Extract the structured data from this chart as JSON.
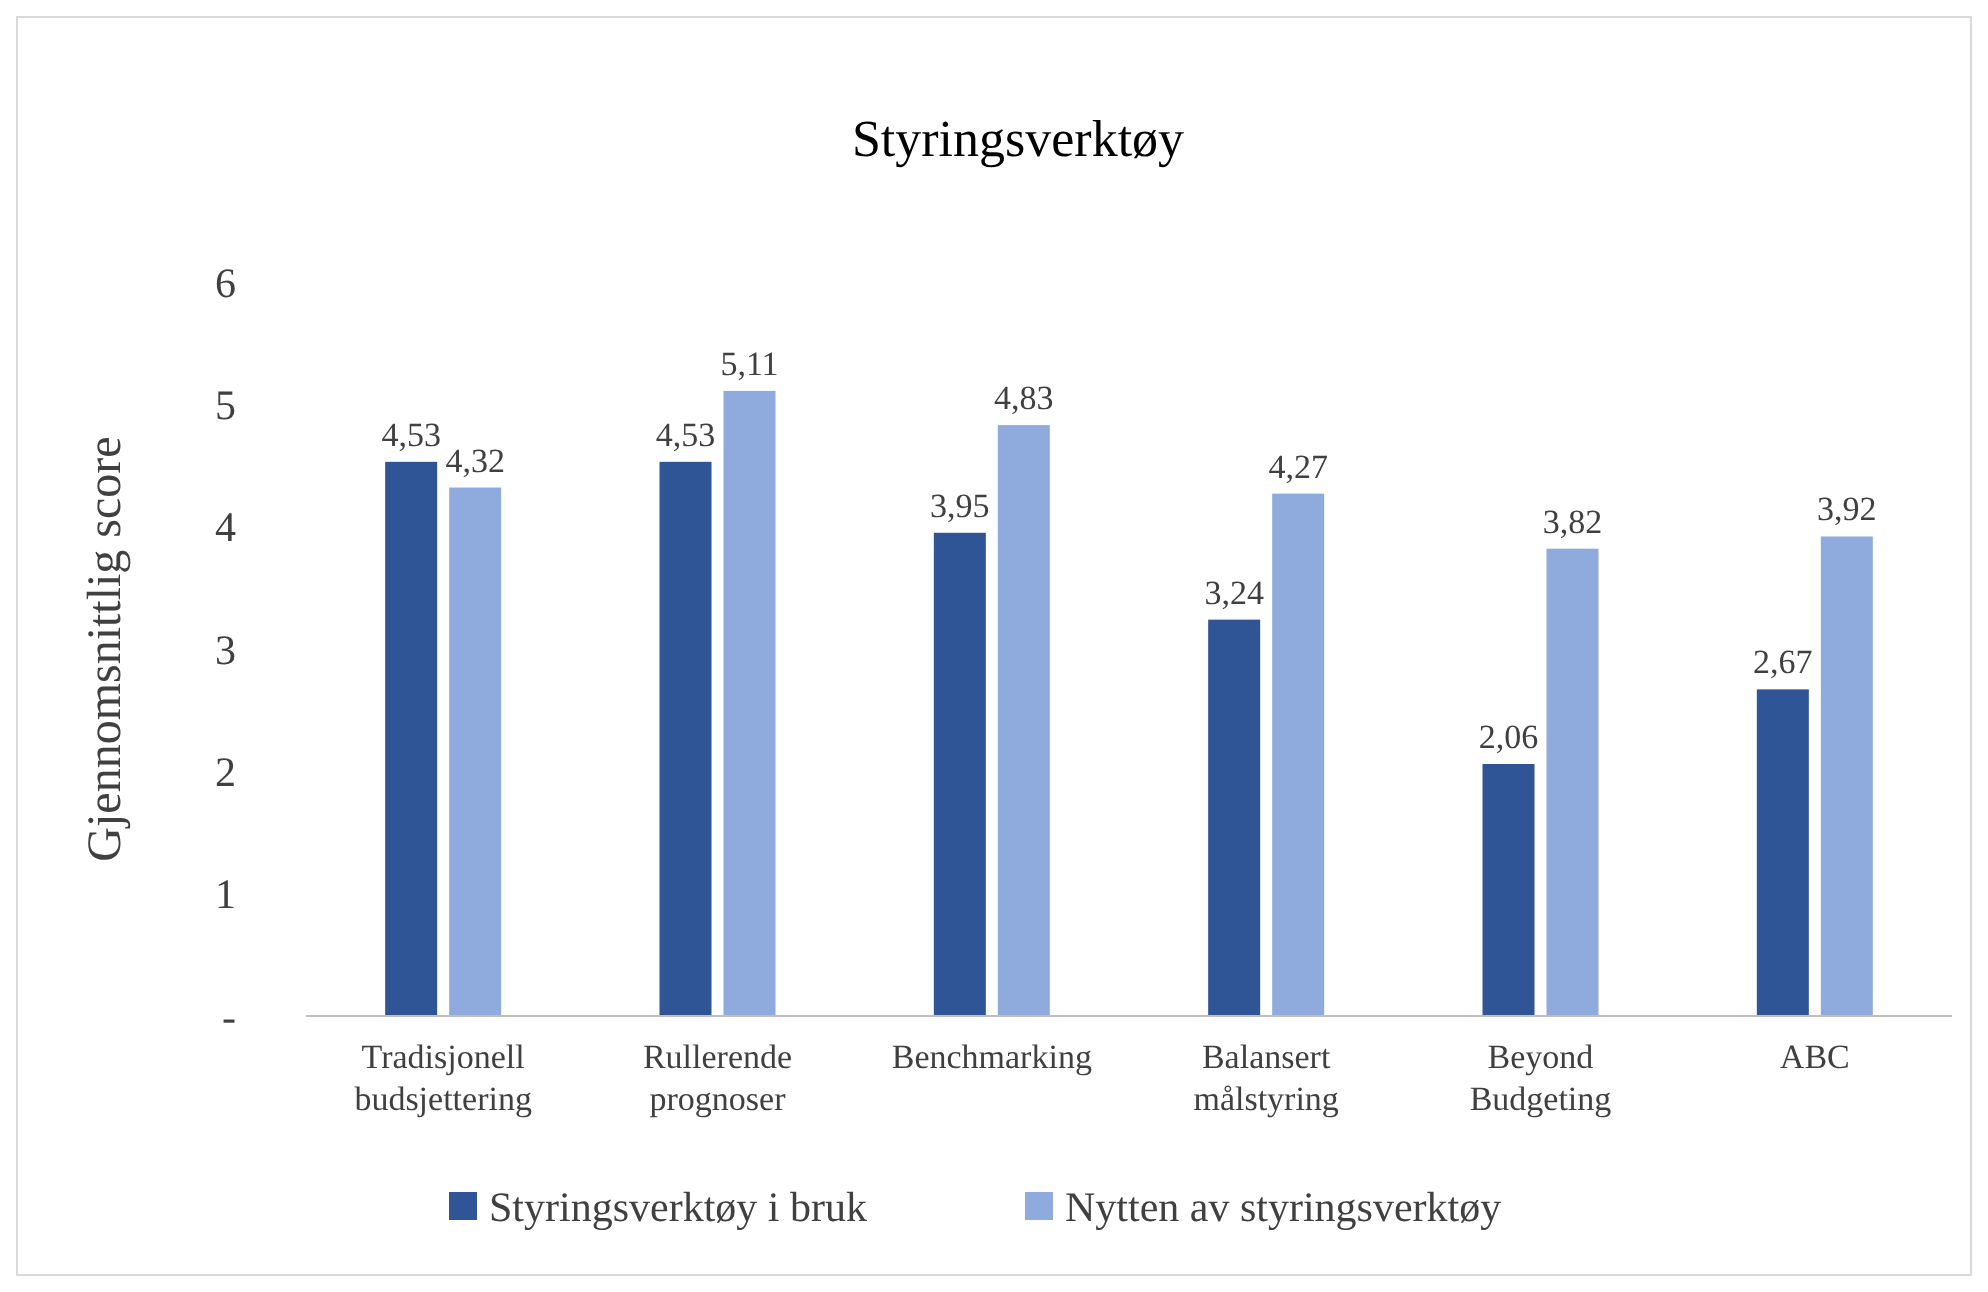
{
  "chart_data": {
    "type": "bar",
    "title": "Styringsverktøy",
    "ylabel": "Gjennomsnittlig score",
    "categories": [
      "Tradisjonell budsjettering",
      "Rullerende prognoser",
      "Benchmarking",
      "Balansert målstyring",
      "Beyond Budgeting",
      "ABC"
    ],
    "series": [
      {
        "name": "Styringsverktøy i bruk",
        "color": "#2f5597",
        "values": [
          4.53,
          4.53,
          3.95,
          3.24,
          2.06,
          2.67
        ],
        "value_labels": [
          "4,53",
          "4,53",
          "3,95",
          "3,24",
          "2,06",
          "2,67"
        ]
      },
      {
        "name": "Nytten av styringsverktøy",
        "color": "#8faadc",
        "values": [
          4.32,
          5.11,
          4.83,
          4.27,
          3.82,
          3.92
        ],
        "value_labels": [
          "4,32",
          "5,11",
          "4,83",
          "4,27",
          "3,82",
          "3,92"
        ]
      }
    ],
    "ylim": [
      0,
      6
    ],
    "yticks": [
      {
        "value": 0,
        "label": "-"
      },
      1,
      2,
      3,
      4,
      5,
      6
    ],
    "grid": false,
    "legend": "bottom"
  }
}
